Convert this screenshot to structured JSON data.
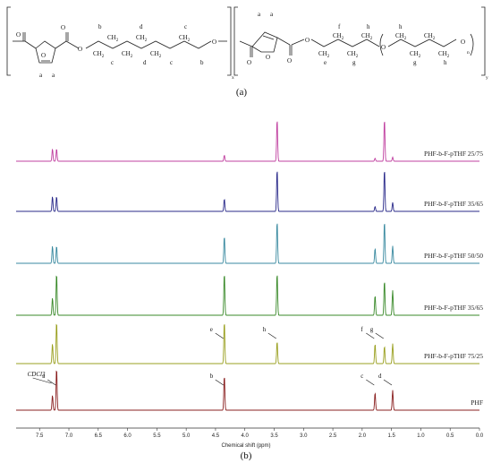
{
  "structure": {
    "panel_label": "(a)",
    "atom_labels_left": [
      "a",
      "a",
      "b",
      "c",
      "d",
      "c",
      "d",
      "c",
      "b"
    ],
    "atom_labels_right": [
      "a",
      "a",
      "e",
      "f",
      "g",
      "h",
      "h",
      "g",
      "h"
    ],
    "subscript_x": "x",
    "subscript_y": "y",
    "subscript_n": "n"
  },
  "panel_b_label": "(b)",
  "chart_data": {
    "type": "line",
    "xlabel": "Chemical shift (ppm)",
    "xlim": [
      7.9,
      0.0
    ],
    "xticks": [
      "7.5",
      "7.0",
      "6.5",
      "6.0",
      "5.5",
      "5.0",
      "4.5",
      "4.0",
      "3.5",
      "3.0",
      "2.5",
      "2.0",
      "1.5",
      "1.0",
      "0.5",
      "0.0"
    ],
    "series": [
      {
        "name": "PHF-b-F-pTHF 25/75",
        "color": "#c040a0",
        "peaks": [
          [
            7.28,
            0.25
          ],
          [
            7.21,
            0.25
          ],
          [
            4.35,
            0.12
          ],
          [
            3.45,
            0.85
          ],
          [
            1.78,
            0.06
          ],
          [
            1.62,
            0.85
          ],
          [
            1.48,
            0.08
          ]
        ]
      },
      {
        "name": "PHF-b-F-pTHF 35/65",
        "color": "#2a2a8a",
        "peaks": [
          [
            7.28,
            0.3
          ],
          [
            7.21,
            0.3
          ],
          [
            4.35,
            0.25
          ],
          [
            3.45,
            0.85
          ],
          [
            1.78,
            0.1
          ],
          [
            1.62,
            0.85
          ],
          [
            1.48,
            0.18
          ]
        ]
      },
      {
        "name": "PHF-b-F-pTHF 50/50",
        "color": "#3a8aa0",
        "peaks": [
          [
            7.28,
            0.35
          ],
          [
            7.21,
            0.35
          ],
          [
            4.35,
            0.55
          ],
          [
            3.45,
            0.85
          ],
          [
            1.78,
            0.3
          ],
          [
            1.62,
            0.85
          ],
          [
            1.48,
            0.35
          ]
        ]
      },
      {
        "name": "PHF-b-F-pTHF 35/65",
        "color": "#3a8a2a",
        "peaks": [
          [
            7.28,
            0.35
          ],
          [
            7.21,
            0.85
          ],
          [
            4.35,
            0.85
          ],
          [
            3.45,
            0.85
          ],
          [
            1.78,
            0.4
          ],
          [
            1.62,
            0.7
          ],
          [
            1.48,
            0.5
          ]
        ]
      },
      {
        "name": "PHF-b-F-pTHF 75/25",
        "color": "#9aa020",
        "peaks": [
          [
            7.28,
            0.4
          ],
          [
            7.21,
            0.85
          ],
          [
            4.35,
            0.85
          ],
          [
            3.45,
            0.45
          ],
          [
            1.78,
            0.4
          ],
          [
            1.62,
            0.35
          ],
          [
            1.48,
            0.4
          ]
        ]
      },
      {
        "name": "PHF",
        "color": "#8a2020",
        "peaks": [
          [
            7.28,
            0.3
          ],
          [
            7.21,
            0.85
          ],
          [
            4.35,
            0.7
          ],
          [
            1.78,
            0.35
          ],
          [
            1.48,
            0.4
          ]
        ]
      }
    ],
    "annotations": [
      {
        "text": "a",
        "x": 7.21,
        "series": 5
      },
      {
        "text": "CDCl3",
        "x": 7.28,
        "series": 5
      },
      {
        "text": "b",
        "x": 4.35,
        "series": 5
      },
      {
        "text": "c",
        "x": 1.78,
        "series": 5
      },
      {
        "text": "d",
        "x": 1.48,
        "series": 5
      },
      {
        "text": "e",
        "x": 4.35,
        "series": 4
      },
      {
        "text": "h",
        "x": 3.45,
        "series": 4
      },
      {
        "text": "g",
        "x": 1.62,
        "series": 4
      },
      {
        "text": "f",
        "x": 1.78,
        "series": 4
      }
    ]
  }
}
